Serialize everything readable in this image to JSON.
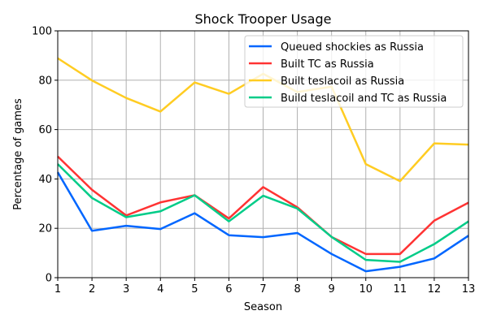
{
  "chart_data": {
    "type": "line",
    "title": "Shock Trooper Usage",
    "xlabel": "Season",
    "ylabel": "Percentage of games",
    "x": [
      1,
      2,
      3,
      4,
      5,
      6,
      7,
      8,
      9,
      10,
      11,
      12,
      13
    ],
    "xlim": [
      1,
      13
    ],
    "ylim": [
      0,
      100
    ],
    "xticks": [
      "1",
      "2",
      "3",
      "4",
      "5",
      "6",
      "7",
      "8",
      "9",
      "10",
      "11",
      "12",
      "13"
    ],
    "yticks": [
      "0",
      "20",
      "40",
      "60",
      "80",
      "100"
    ],
    "grid": true,
    "legend_position": "top-right",
    "series": [
      {
        "name": "Queued shockies as Russia",
        "color": "#0066ff",
        "values": [
          42.7,
          19.0,
          21.0,
          19.7,
          26.1,
          17.2,
          16.4,
          18.1,
          9.6,
          2.6,
          4.4,
          7.8,
          17.0
        ]
      },
      {
        "name": "Built TC as Russia",
        "color": "#ff3333",
        "values": [
          49.1,
          35.6,
          25.2,
          30.5,
          33.4,
          24.0,
          36.7,
          28.5,
          16.5,
          9.6,
          9.6,
          23.1,
          30.4
        ]
      },
      {
        "name": "Built teslacoil as Russia",
        "color": "#ffcc22",
        "values": [
          88.9,
          79.9,
          72.8,
          67.3,
          79.1,
          74.5,
          82.6,
          75.2,
          77.4,
          46.0,
          39.1,
          54.4,
          53.9
        ]
      },
      {
        "name": "Build teslacoil and TC as Russia",
        "color": "#00cc88",
        "values": [
          46.0,
          32.3,
          24.5,
          26.9,
          33.4,
          22.8,
          33.2,
          28.0,
          16.5,
          7.2,
          6.4,
          13.6,
          22.8
        ]
      }
    ]
  }
}
